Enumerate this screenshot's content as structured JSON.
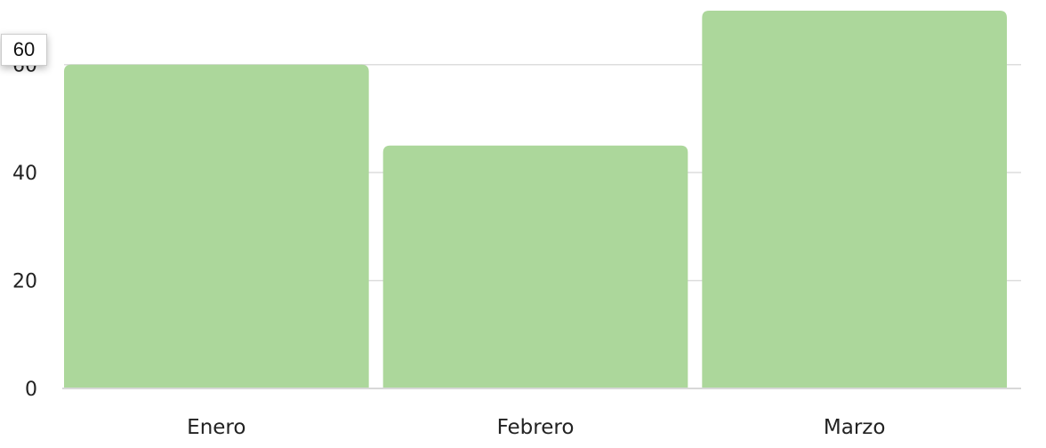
{
  "chart_data": {
    "type": "bar",
    "categories": [
      "Enero",
      "Febrero",
      "Marzo"
    ],
    "values": [
      60,
      45,
      70
    ],
    "ylim": [
      0,
      70
    ],
    "yticks": [
      0,
      20,
      40,
      60
    ],
    "grid": true,
    "bar_color": "#acd79b",
    "title": "",
    "xlabel": "",
    "ylabel": ""
  },
  "tooltip": {
    "value": "60"
  }
}
